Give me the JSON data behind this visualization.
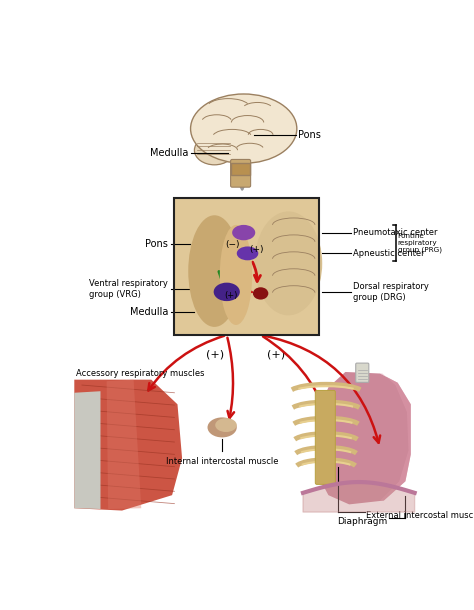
{
  "bg_color": "#ffffff",
  "brain_tissue": "#e8d5b5",
  "brain_outline": "#9b8060",
  "brainstem_color": "#c8a870",
  "pons_box_color": "#c8a060",
  "zoom_box_bg": "#dfc9a0",
  "zoom_box_border": "#222222",
  "purple_bright": "#8844aa",
  "purple_mid": "#6633aa",
  "purple_dark": "#442288",
  "dark_red_node": "#881111",
  "green_arrow": "#228822",
  "red_arrow": "#cc1111",
  "gray_arrow": "#888888",
  "muscle_red": "#cc5544",
  "muscle_mid": "#bb4433",
  "muscle_dark": "#993322",
  "muscle_light": "#dd7766",
  "white_tissue": "#cccccc",
  "bone_tan": "#d4b87a",
  "bone_light": "#e8d090",
  "cartilage": "#c8aa60",
  "lung_pink": "#cc8899",
  "lung_light": "#dd99aa",
  "trachea_color": "#dddddd",
  "diaphragm_color": "#bb7799",
  "labels": {
    "medulla_brain": "Medulla",
    "pons_brain": "Pons",
    "pons_zoom": "Pons",
    "pneumotaxic": "Pneumotaxic center",
    "apneustic": "Apneustic center",
    "prg": "Pontine\nrespiratory\ngroup (PRG)",
    "vrg": "Ventral respiratory\ngroup (VRG)",
    "drg": "Dorsal respiratory\ngroup (DRG)",
    "medulla_zoom": "Medulla",
    "accessory": "Accessory respiratory muscles",
    "internal_ic": "Internal intercostal muscle",
    "external_ic": "External intercostal muscle",
    "diaphragm": "Diaphragm",
    "plus1": "(+)",
    "plus2": "(+)",
    "plus_inner1": "(+)",
    "plus_inner2": "(+)",
    "minus_inner": "(−)"
  },
  "fs": 7.0,
  "fs_small": 6.0
}
